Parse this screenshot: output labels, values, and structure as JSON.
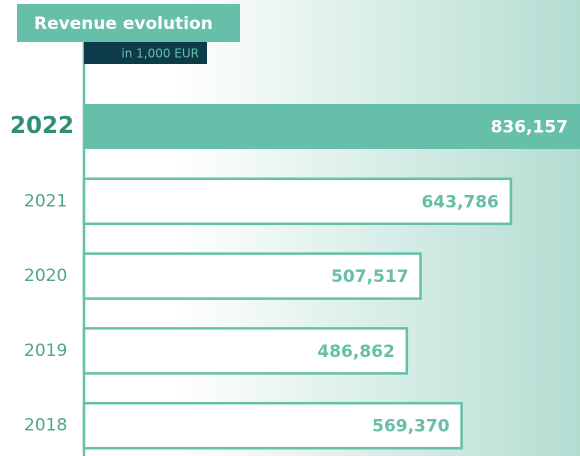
{
  "chart_data": {
    "type": "hbar",
    "title": "Revenue evolution",
    "subtitle": "in 1,000 EUR",
    "categories": [
      "2022",
      "2021",
      "2020",
      "2019",
      "2018"
    ],
    "values": [
      836157,
      643786,
      507517,
      486862,
      569370
    ],
    "value_labels": [
      "836,157",
      "643,786",
      "507,517",
      "486,862",
      "569,370"
    ],
    "color": "#66bfa8",
    "colors": [
      "#66bfa8",
      "#ffffff",
      "#ffffff",
      "#ffffff",
      "#ffffff"
    ],
    "xlim": [
      0,
      748000
    ]
  }
}
